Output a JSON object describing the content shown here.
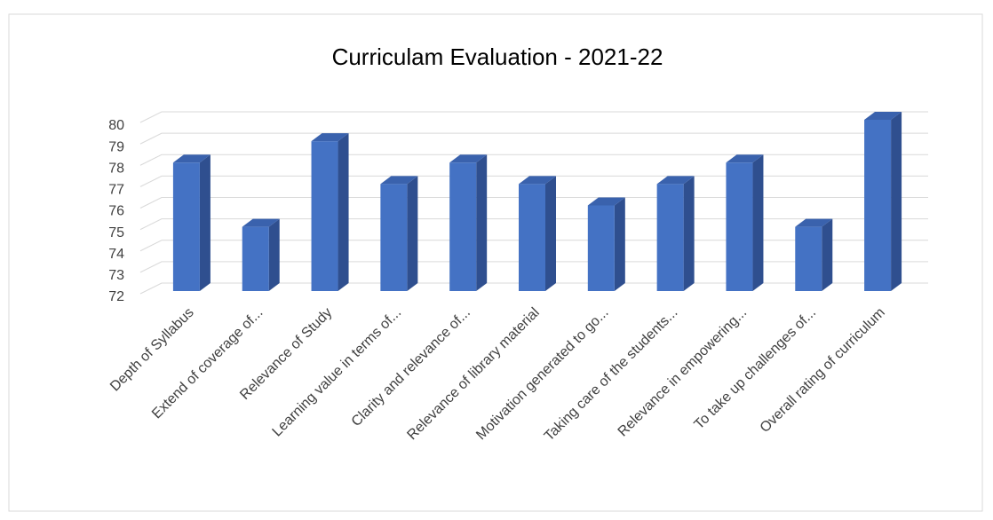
{
  "chart_data": {
    "type": "bar3d",
    "title": "Curriculam Evaluation - 2021-22",
    "categories": [
      "Depth of Syllabus",
      "Extend of coverage of...",
      "Relevance of Study",
      "Learning value in terms of...",
      "Clarity and relevance of...",
      "Relevance of library material",
      "Motivation generated to go...",
      "Taking care of the students...",
      "Relevance in empowering...",
      "To take up challenges of...",
      "Overall rating of curriculum"
    ],
    "values": [
      78,
      75,
      79,
      77,
      78,
      77,
      76,
      77,
      78,
      75,
      80
    ],
    "color": "#4472c4",
    "ylim": [
      72,
      80
    ],
    "yticks": [
      72,
      73,
      74,
      75,
      76,
      77,
      78,
      79,
      80
    ],
    "grid": true
  }
}
